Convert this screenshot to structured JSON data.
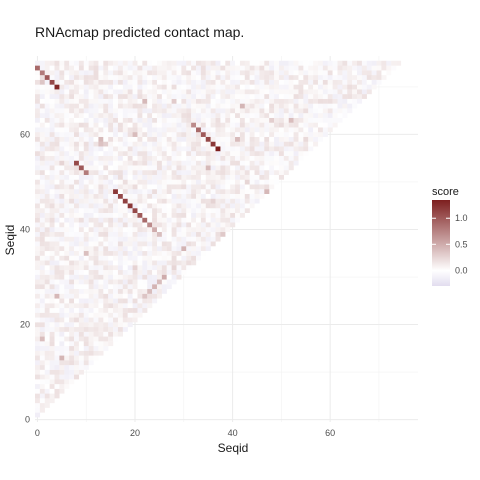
{
  "chart_data": {
    "type": "heatmap",
    "title": "RNAcmap predicted contact map.",
    "xlabel": "Seqid",
    "ylabel": "Seqid",
    "x_ticks": [
      0,
      20,
      40,
      60
    ],
    "y_ticks": [
      0,
      20,
      40,
      60
    ],
    "xlim": [
      -0.5,
      78
    ],
    "ylim": [
      -0.5,
      76.5
    ],
    "grid": true,
    "legend_position": "right",
    "legend": {
      "title": "score",
      "ticks": [
        0.0,
        0.5,
        1.0
      ],
      "tick_labels": [
        "0.0",
        "0.5",
        "1.0"
      ],
      "min": -0.3,
      "max": 1.35,
      "colors": {
        "low": "#e2ddef",
        "mid": "#ffffff",
        "high": "#7d1f1f"
      }
    },
    "region": "upper triangle (y > x), sequence positions 0–75; background cells contain low-amplitude noise scores between about -0.2 and 0.3",
    "strong_contacts": [
      {
        "x": 0,
        "y": 74,
        "score": 0.9
      },
      {
        "x": 1,
        "y": 73,
        "score": 0.8
      },
      {
        "x": 2,
        "y": 72,
        "score": 1.0
      },
      {
        "x": 3,
        "y": 71,
        "score": 1.1
      },
      {
        "x": 4,
        "y": 70,
        "score": 1.3
      },
      {
        "x": 32,
        "y": 62,
        "score": 0.7
      },
      {
        "x": 33,
        "y": 61,
        "score": 0.9
      },
      {
        "x": 34,
        "y": 60,
        "score": 1.0
      },
      {
        "x": 35,
        "y": 59,
        "score": 1.1
      },
      {
        "x": 36,
        "y": 58,
        "score": 1.2
      },
      {
        "x": 37,
        "y": 57,
        "score": 1.35
      },
      {
        "x": 8,
        "y": 54,
        "score": 1.1
      },
      {
        "x": 9,
        "y": 53,
        "score": 1.0
      },
      {
        "x": 10,
        "y": 52,
        "score": 0.8
      },
      {
        "x": 16,
        "y": 48,
        "score": 1.2
      },
      {
        "x": 17,
        "y": 47,
        "score": 1.1
      },
      {
        "x": 18,
        "y": 46,
        "score": 1.15
      },
      {
        "x": 19,
        "y": 45,
        "score": 1.2
      },
      {
        "x": 20,
        "y": 44,
        "score": 1.1
      },
      {
        "x": 21,
        "y": 43,
        "score": 1.0
      },
      {
        "x": 22,
        "y": 42,
        "score": 0.9
      },
      {
        "x": 23,
        "y": 41,
        "score": 0.7
      },
      {
        "x": 24,
        "y": 40,
        "score": 0.5
      },
      {
        "x": 25,
        "y": 39,
        "score": 0.4
      },
      {
        "x": 26,
        "y": 30,
        "score": 0.5
      },
      {
        "x": 25,
        "y": 29,
        "score": 0.4
      },
      {
        "x": 24,
        "y": 28,
        "score": 0.45
      },
      {
        "x": 23,
        "y": 27,
        "score": 0.4
      },
      {
        "x": 22,
        "y": 26,
        "score": 0.35
      }
    ]
  }
}
